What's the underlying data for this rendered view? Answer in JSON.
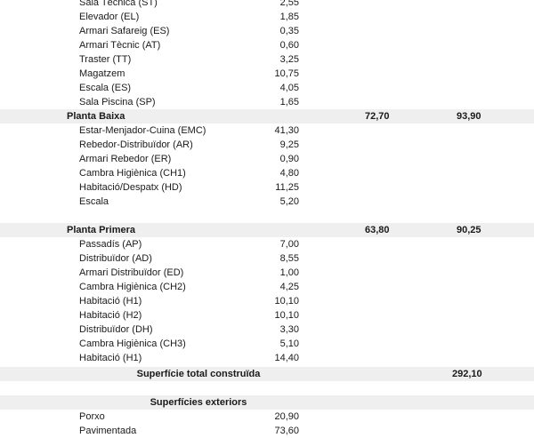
{
  "top_rows": [
    {
      "name": "Sala Tècnica (ST)",
      "value": "2,55"
    },
    {
      "name": "Elevador (EL)",
      "value": "1,85"
    },
    {
      "name": "Armari Safareig (ES)",
      "value": "0,35"
    },
    {
      "name": "Armari Tècnic (AT)",
      "value": "0,60"
    },
    {
      "name": "Traster (TT)",
      "value": "3,25"
    },
    {
      "name": "Magatzem",
      "value": "10,75"
    },
    {
      "name": "Escala (ES)",
      "value": "4,05"
    },
    {
      "name": "Sala Piscina (SP)",
      "value": "1,65"
    }
  ],
  "planta_baixa": {
    "title": "Planta Baixa",
    "col1": "72,70",
    "col2": "93,90",
    "rows": [
      {
        "name": "Estar-Menjador-Cuina (EMC)",
        "value": "41,30"
      },
      {
        "name": "Rebedor-Distribuïdor (AR)",
        "value": "9,25"
      },
      {
        "name": "Armari Rebedor (ER)",
        "value": "0,90"
      },
      {
        "name": "Cambra Higiènica (CH1)",
        "value": "4,80"
      },
      {
        "name": "Habitació/Despatx (HD)",
        "value": "11,25"
      },
      {
        "name": "Escala",
        "value": "5,20"
      }
    ]
  },
  "planta_primera": {
    "title": "Planta Primera",
    "col1": "63,80",
    "col2": "90,25",
    "rows": [
      {
        "name": "Passadís (AP)",
        "value": "7,00"
      },
      {
        "name": "Distribuïdor (AD)",
        "value": "8,55"
      },
      {
        "name": "Armari Distribuïdor (ED)",
        "value": "1,00"
      },
      {
        "name": "Cambra Higiènica (CH2)",
        "value": "4,25"
      },
      {
        "name": "Habitació (H1)",
        "value": "10,10"
      },
      {
        "name": "Habitació (H2)",
        "value": "10,10"
      },
      {
        "name": "Distribuïdor (DH)",
        "value": "3,30"
      },
      {
        "name": "Cambra Higiènica (CH3)",
        "value": "5,10"
      },
      {
        "name": "Habitació (H1)",
        "value": "14,40"
      }
    ]
  },
  "total": {
    "label": "Superfície total construïda",
    "value": "292,10"
  },
  "exteriors": {
    "title": "Superfícies exteriors",
    "rows": [
      {
        "name": "Porxo",
        "value": "20,90"
      },
      {
        "name": "Pavimentada",
        "value": "73,60"
      }
    ]
  }
}
